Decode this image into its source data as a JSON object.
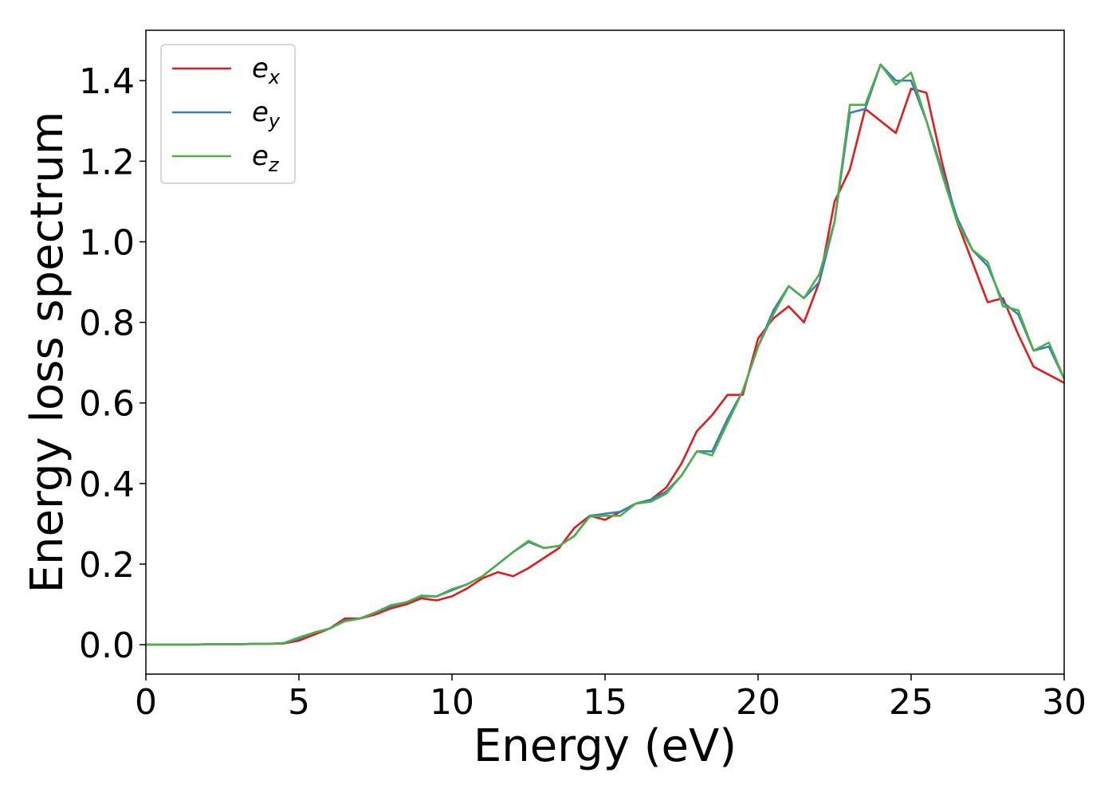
{
  "chart_data": {
    "type": "line",
    "xlabel": "Energy (eV)",
    "ylabel": "Energy loss spectrum",
    "x": [
      0,
      0.5,
      1,
      1.5,
      2,
      2.5,
      3,
      3.5,
      4,
      4.5,
      5,
      5.5,
      6,
      6.5,
      7,
      7.5,
      8,
      8.5,
      9,
      9.5,
      10,
      10.5,
      11,
      11.5,
      12,
      12.5,
      13,
      13.5,
      14,
      14.5,
      15,
      15.5,
      16,
      16.5,
      17,
      17.5,
      18,
      18.5,
      19,
      19.5,
      20,
      20.5,
      21,
      21.5,
      22,
      22.5,
      23,
      23.5,
      24,
      24.5,
      25,
      25.5,
      26,
      26.5,
      27,
      27.5,
      28,
      28.5,
      29,
      29.5,
      30
    ],
    "series": [
      {
        "name": "e_x",
        "color": "#e41a1c",
        "values": [
          0,
          0,
          0,
          0,
          0.001,
          0.001,
          0.001,
          0.002,
          0.002,
          0.003,
          0.01,
          0.025,
          0.04,
          0.065,
          0.065,
          0.075,
          0.09,
          0.1,
          0.115,
          0.11,
          0.12,
          0.14,
          0.165,
          0.18,
          0.17,
          0.19,
          0.215,
          0.24,
          0.29,
          0.32,
          0.31,
          0.33,
          0.35,
          0.36,
          0.39,
          0.45,
          0.53,
          0.57,
          0.62,
          0.62,
          0.76,
          0.81,
          0.84,
          0.8,
          0.9,
          1.1,
          1.18,
          1.33,
          1.3,
          1.27,
          1.38,
          1.37,
          1.2,
          1.05,
          0.95,
          0.85,
          0.86,
          0.77,
          0.69,
          0.67,
          0.65
        ]
      },
      {
        "name": "e_y",
        "color": "#377eb8",
        "values": [
          0,
          0,
          0,
          0,
          0.001,
          0.001,
          0.001,
          0.002,
          0.002,
          0.004,
          0.015,
          0.03,
          0.04,
          0.06,
          0.065,
          0.08,
          0.095,
          0.105,
          0.12,
          0.12,
          0.135,
          0.15,
          0.17,
          0.2,
          0.23,
          0.255,
          0.24,
          0.245,
          0.27,
          0.32,
          0.325,
          0.33,
          0.35,
          0.36,
          0.38,
          0.42,
          0.48,
          0.48,
          0.56,
          0.63,
          0.74,
          0.83,
          0.89,
          0.86,
          0.9,
          1.05,
          1.32,
          1.33,
          1.44,
          1.4,
          1.4,
          1.3,
          1.18,
          1.06,
          0.98,
          0.94,
          0.85,
          0.82,
          0.73,
          0.74,
          0.66
        ]
      },
      {
        "name": "e_z",
        "color": "#4daf4a",
        "values": [
          0,
          0,
          0,
          0,
          0.001,
          0.001,
          0.001,
          0.002,
          0.002,
          0.004,
          0.018,
          0.03,
          0.04,
          0.058,
          0.065,
          0.08,
          0.098,
          0.105,
          0.122,
          0.12,
          0.138,
          0.15,
          0.17,
          0.2,
          0.23,
          0.258,
          0.24,
          0.245,
          0.27,
          0.318,
          0.32,
          0.32,
          0.35,
          0.355,
          0.375,
          0.42,
          0.48,
          0.47,
          0.55,
          0.63,
          0.74,
          0.82,
          0.89,
          0.86,
          0.92,
          1.05,
          1.34,
          1.34,
          1.44,
          1.39,
          1.42,
          1.3,
          1.17,
          1.05,
          0.98,
          0.95,
          0.84,
          0.83,
          0.73,
          0.75,
          0.66
        ]
      }
    ],
    "xlim": [
      0,
      30
    ],
    "xticks": [
      0,
      5,
      10,
      15,
      20,
      25,
      30
    ],
    "ylim": [
      -0.073,
      1.525
    ],
    "yticks": [
      {
        "value": 0,
        "label": "0.0"
      },
      0.2,
      0.4,
      0.6,
      0.8,
      {
        "value": 1,
        "label": "1.0"
      },
      1.2,
      1.4
    ],
    "legend": "upper left"
  }
}
